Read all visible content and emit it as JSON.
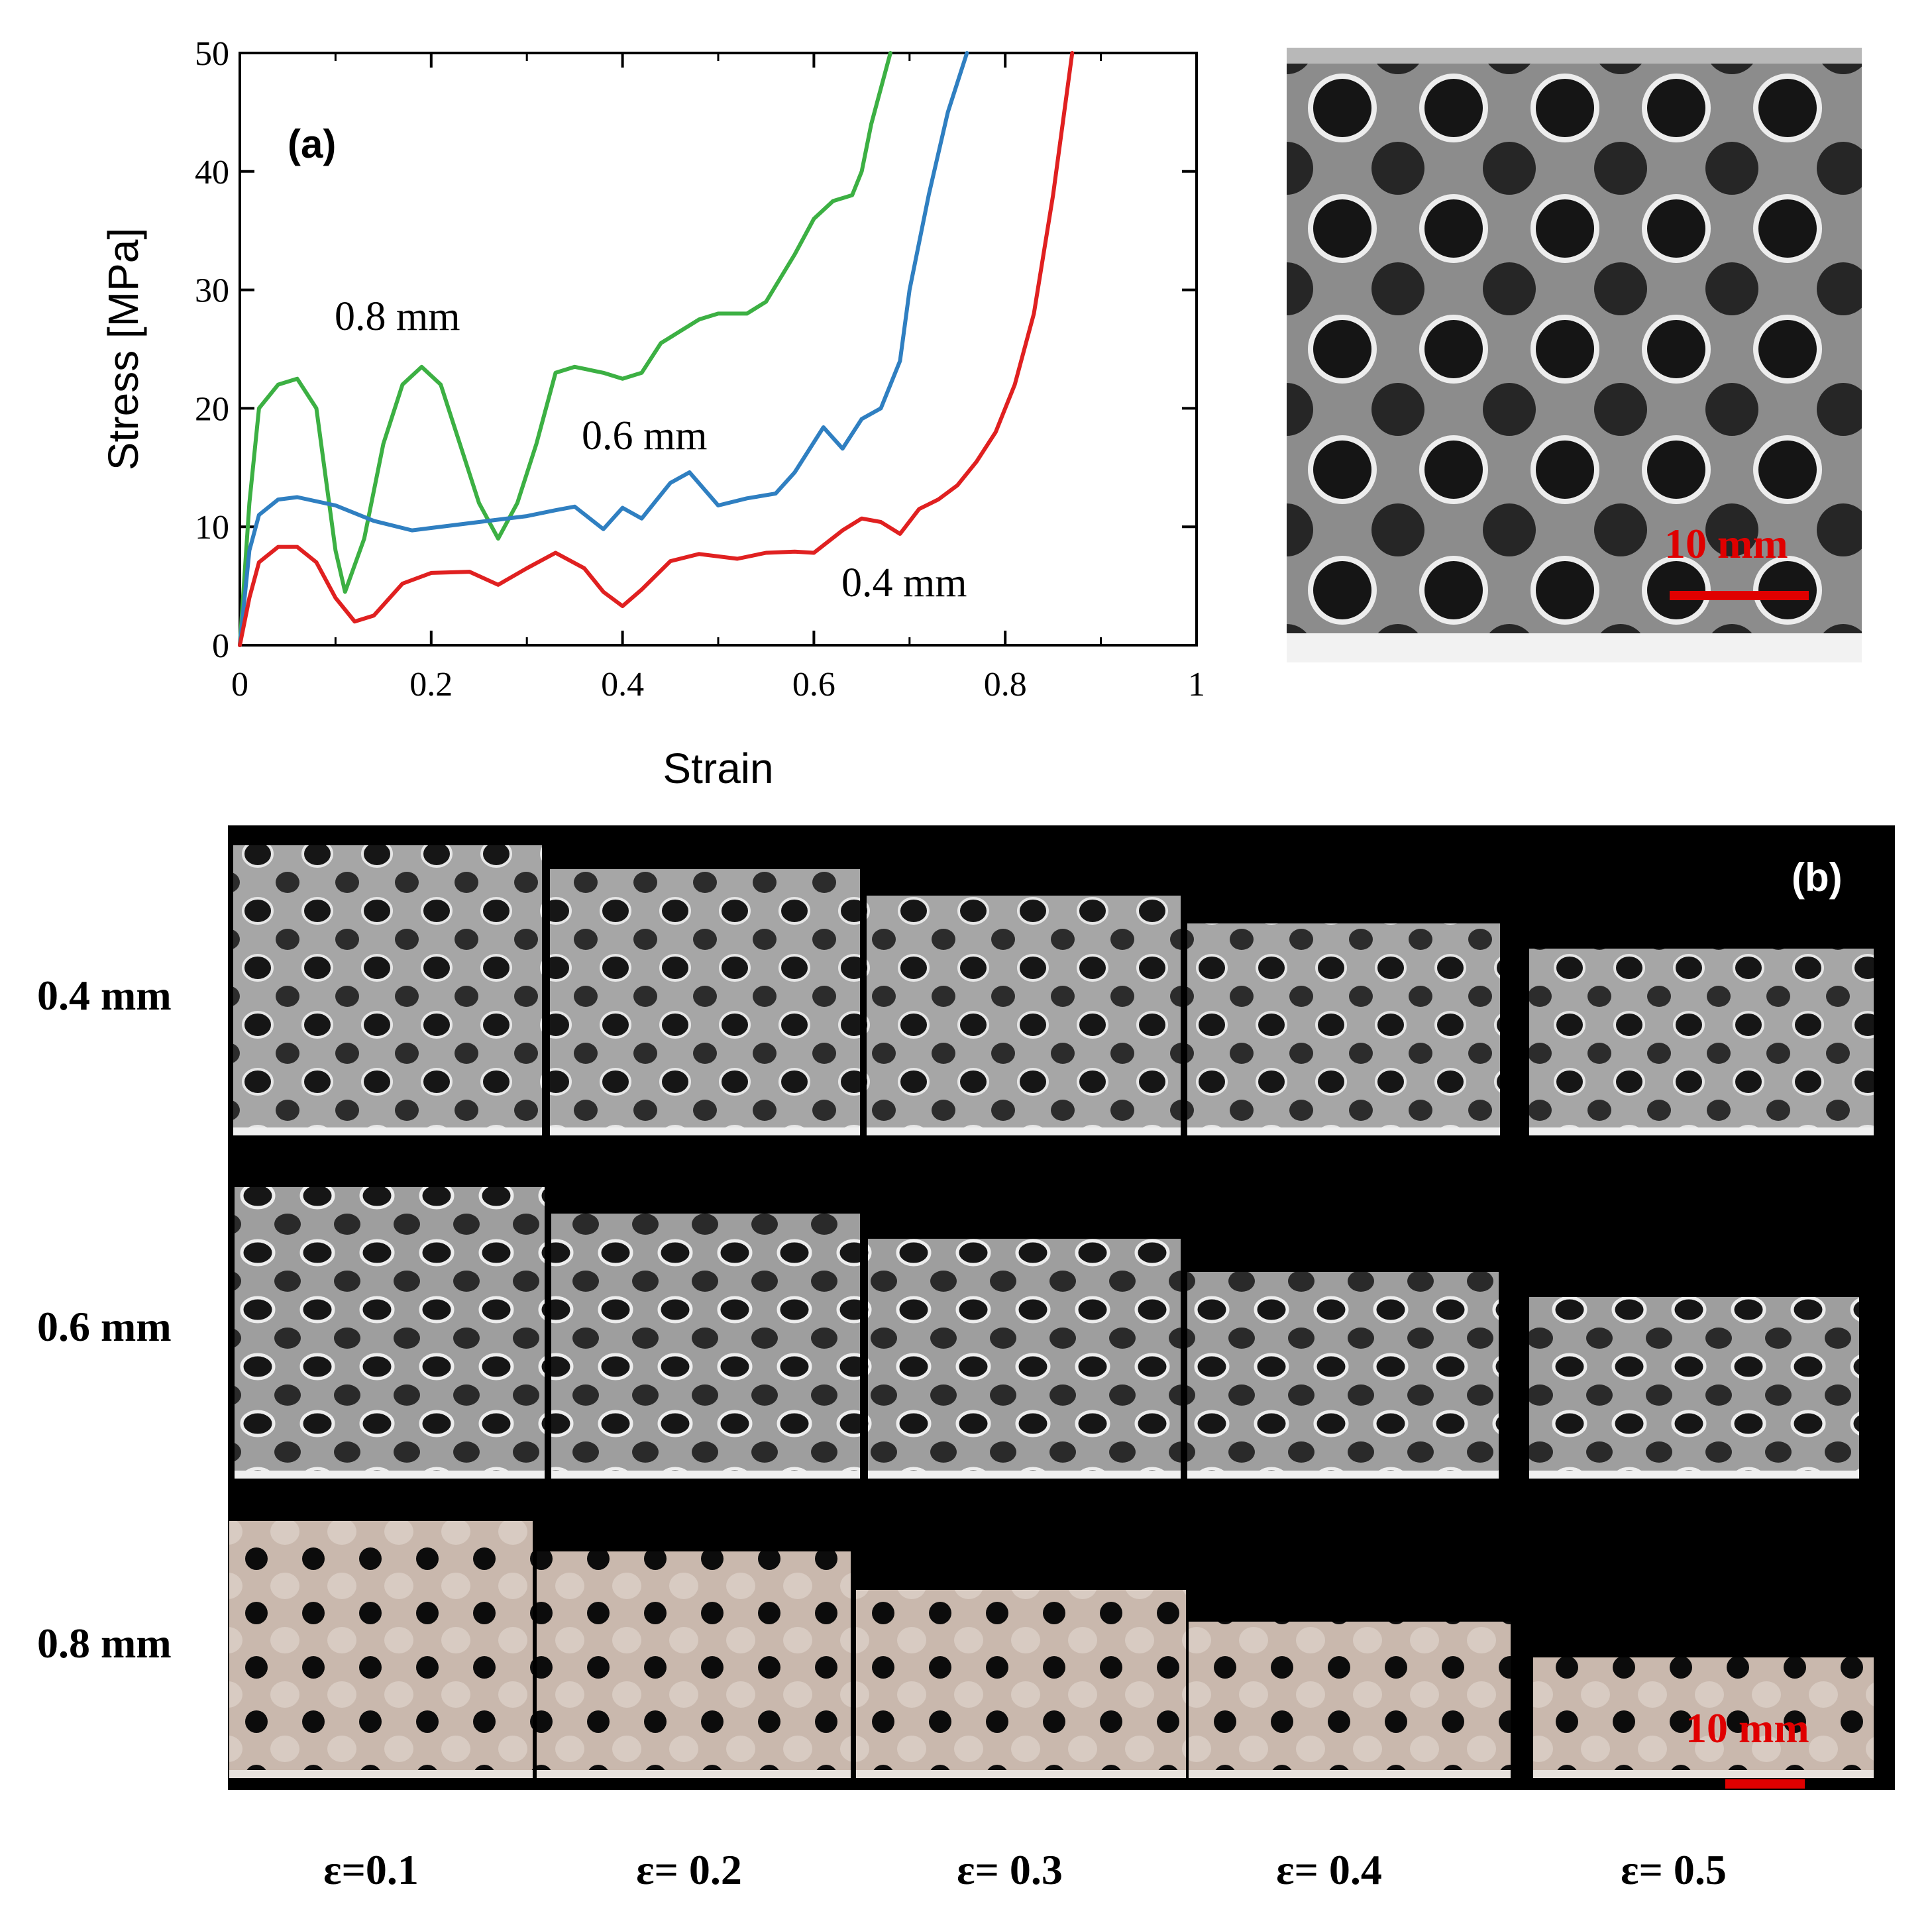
{
  "chart_data": {
    "type": "line",
    "panel_label": "(a)",
    "xlabel": "Strain",
    "ylabel": "Stress [MPa]",
    "xlim": [
      0,
      1
    ],
    "ylim": [
      0,
      50
    ],
    "xticks": [
      "0",
      "0.2",
      "0.4",
      "0.6",
      "0.8",
      "1"
    ],
    "yticks": [
      "0",
      "10",
      "20",
      "30",
      "40",
      "50"
    ],
    "series": [
      {
        "name": "0.8 mm",
        "color": "#3cb043",
        "x": [
          0,
          0.01,
          0.02,
          0.04,
          0.06,
          0.08,
          0.1,
          0.11,
          0.13,
          0.15,
          0.17,
          0.19,
          0.21,
          0.23,
          0.25,
          0.27,
          0.29,
          0.31,
          0.33,
          0.35,
          0.38,
          0.4,
          0.42,
          0.44,
          0.46,
          0.48,
          0.5,
          0.53,
          0.55,
          0.58,
          0.6,
          0.62,
          0.64,
          0.65,
          0.66,
          0.68
        ],
        "y": [
          0,
          12,
          20,
          22,
          22.5,
          20,
          8,
          4.5,
          9,
          17,
          22,
          23.5,
          22,
          17,
          12,
          9,
          12,
          17,
          23,
          23.5,
          23,
          22.5,
          23,
          25.5,
          26.5,
          27.5,
          28,
          28,
          29,
          33,
          36,
          37.5,
          38,
          40,
          44,
          50
        ]
      },
      {
        "name": "0.6 mm",
        "color": "#2f7fc1",
        "x": [
          0,
          0.01,
          0.02,
          0.04,
          0.06,
          0.1,
          0.14,
          0.18,
          0.2,
          0.25,
          0.3,
          0.33,
          0.35,
          0.38,
          0.4,
          0.42,
          0.45,
          0.47,
          0.5,
          0.53,
          0.56,
          0.58,
          0.61,
          0.63,
          0.65,
          0.67,
          0.69,
          0.7,
          0.72,
          0.74,
          0.76
        ],
        "y": [
          0,
          8,
          11,
          12.3,
          12.5,
          11.8,
          10.5,
          9.7,
          9.9,
          10.4,
          10.9,
          11.4,
          11.7,
          9.8,
          11.6,
          10.7,
          13.7,
          14.6,
          11.8,
          12.4,
          12.8,
          14.6,
          18.4,
          16.6,
          19.1,
          20,
          24,
          30,
          38,
          45,
          50
        ]
      },
      {
        "name": "0.4 mm",
        "color": "#e02020",
        "x": [
          0,
          0.01,
          0.02,
          0.04,
          0.06,
          0.08,
          0.1,
          0.12,
          0.14,
          0.17,
          0.2,
          0.24,
          0.27,
          0.3,
          0.33,
          0.36,
          0.38,
          0.4,
          0.42,
          0.45,
          0.48,
          0.52,
          0.55,
          0.58,
          0.6,
          0.63,
          0.65,
          0.67,
          0.69,
          0.71,
          0.73,
          0.75,
          0.77,
          0.79,
          0.81,
          0.83,
          0.85,
          0.87
        ],
        "y": [
          0,
          4,
          7,
          8.3,
          8.3,
          7,
          4,
          2,
          2.5,
          5.2,
          6.1,
          6.2,
          5.1,
          6.5,
          7.8,
          6.5,
          4.5,
          3.3,
          4.7,
          7.1,
          7.7,
          7.3,
          7.8,
          7.9,
          7.8,
          9.7,
          10.7,
          10.4,
          9.4,
          11.5,
          12.3,
          13.5,
          15.5,
          18,
          22,
          28,
          38,
          50
        ]
      }
    ]
  },
  "figure": {
    "panel_b_label": "(b)",
    "scale_bar_label": "10 mm",
    "row_labels": [
      "0.4 mm",
      "0.6 mm",
      "0.8 mm"
    ],
    "column_labels": [
      "ε=0.1",
      "ε= 0.2",
      "ε= 0.3",
      "ε= 0.4",
      "ε= 0.5"
    ]
  }
}
